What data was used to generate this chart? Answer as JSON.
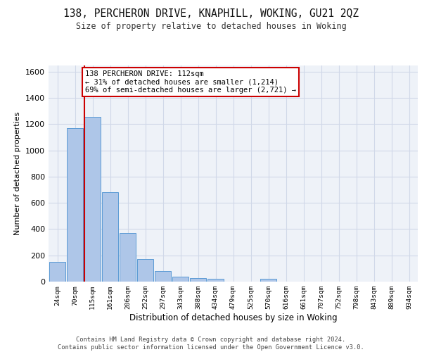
{
  "title_line1": "138, PERCHERON DRIVE, KNAPHILL, WOKING, GU21 2QZ",
  "title_line2": "Size of property relative to detached houses in Woking",
  "xlabel": "Distribution of detached houses by size in Woking",
  "ylabel": "Number of detached properties",
  "bar_labels": [
    "24sqm",
    "70sqm",
    "115sqm",
    "161sqm",
    "206sqm",
    "252sqm",
    "297sqm",
    "343sqm",
    "388sqm",
    "434sqm",
    "479sqm",
    "525sqm",
    "570sqm",
    "616sqm",
    "661sqm",
    "707sqm",
    "752sqm",
    "798sqm",
    "843sqm",
    "889sqm",
    "934sqm"
  ],
  "bar_values": [
    148,
    1170,
    1255,
    680,
    370,
    170,
    80,
    40,
    27,
    20,
    0,
    0,
    20,
    0,
    0,
    0,
    0,
    0,
    0,
    0,
    0
  ],
  "bar_color": "#aec6e8",
  "bar_edge_color": "#5b9bd5",
  "grid_color": "#d0d8e8",
  "background_color": "#eef2f8",
  "vline_x_index": 2,
  "vline_color": "#cc0000",
  "annotation_text": "138 PERCHERON DRIVE: 112sqm\n← 31% of detached houses are smaller (1,214)\n69% of semi-detached houses are larger (2,721) →",
  "annotation_box_color": "#ffffff",
  "annotation_box_edge": "#cc0000",
  "ylim": [
    0,
    1650
  ],
  "yticks": [
    0,
    200,
    400,
    600,
    800,
    1000,
    1200,
    1400,
    1600
  ],
  "footer": "Contains HM Land Registry data © Crown copyright and database right 2024.\nContains public sector information licensed under the Open Government Licence v3.0."
}
